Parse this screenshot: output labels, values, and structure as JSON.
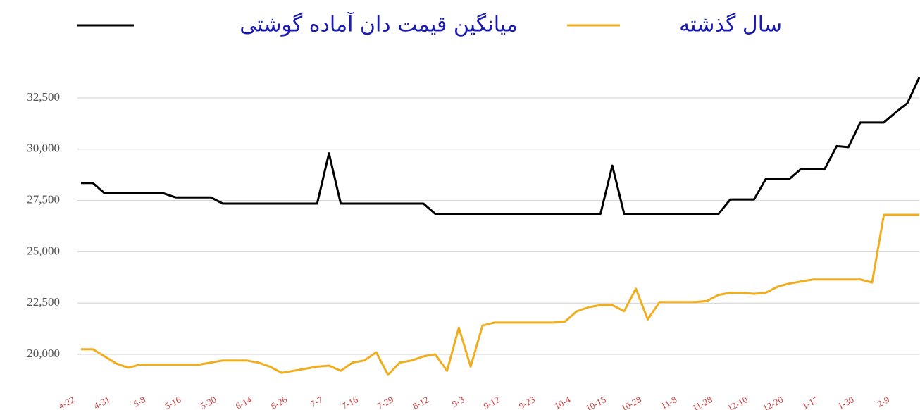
{
  "chart_data": {
    "type": "line",
    "categories": [
      "4-22",
      null,
      null,
      "4-31",
      null,
      null,
      "5-8",
      null,
      null,
      "5-16",
      null,
      null,
      "5-30",
      null,
      null,
      "6-14",
      null,
      null,
      "6-26",
      null,
      null,
      "7-7",
      null,
      null,
      "7-16",
      null,
      null,
      "7-29",
      null,
      null,
      "8-12",
      null,
      null,
      "9-3",
      null,
      null,
      "9-12",
      null,
      null,
      "9-23",
      null,
      null,
      "10-4",
      null,
      null,
      "10-15",
      null,
      null,
      "10-28",
      null,
      null,
      "11-8",
      null,
      null,
      "11-28",
      null,
      null,
      "12-10",
      null,
      null,
      "12-20",
      null,
      null,
      "1-17",
      null,
      null,
      "1-30",
      null,
      null,
      "2-9",
      null,
      null
    ],
    "series": [
      {
        "name": "میانگین قیمت دان آماده گوشتی",
        "color": "#000000",
        "values": [
          28350,
          28350,
          27850,
          27850,
          27850,
          27850,
          27850,
          27850,
          27650,
          27650,
          27650,
          27650,
          27350,
          27350,
          27350,
          27350,
          27350,
          27350,
          27350,
          27350,
          27350,
          29800,
          27350,
          27350,
          27350,
          27350,
          27350,
          27350,
          27350,
          27350,
          26850,
          26850,
          26850,
          26850,
          26850,
          26850,
          26850,
          26850,
          26850,
          26850,
          26850,
          26850,
          26850,
          26850,
          26850,
          29200,
          26850,
          26850,
          26850,
          26850,
          26850,
          26850,
          26850,
          26850,
          26850,
          27550,
          27550,
          27550,
          28550,
          28550,
          28550,
          29050,
          29050,
          29050,
          30150,
          30100,
          31300,
          31300,
          31300,
          31800,
          32250,
          33500
        ]
      },
      {
        "name": "سال گذشته",
        "color": "#f0ad1e",
        "values": [
          20250,
          20250,
          19900,
          19550,
          19350,
          19500,
          19500,
          19500,
          19500,
          19500,
          19500,
          19600,
          19700,
          19700,
          19700,
          19600,
          19400,
          19100,
          19200,
          19300,
          19400,
          19450,
          19200,
          19600,
          19700,
          20100,
          19000,
          19600,
          19700,
          19900,
          20000,
          19200,
          21300,
          19400,
          21400,
          21550,
          21550,
          21550,
          21550,
          21550,
          21550,
          21600,
          22100,
          22300,
          22400,
          22400,
          22100,
          23200,
          21700,
          22550,
          22550,
          22550,
          22550,
          22600,
          22900,
          23000,
          23000,
          22950,
          23000,
          23300,
          23450,
          23550,
          23650,
          23650,
          23650,
          23650,
          23650,
          23500,
          26800,
          26800,
          26800,
          26800
        ]
      }
    ],
    "ylim": [
      18500,
      34000
    ],
    "yticks": [
      {
        "value": 20000,
        "label": "20,000"
      },
      {
        "value": 22500,
        "label": "22,500"
      },
      {
        "value": 25000,
        "label": "25,000"
      },
      {
        "value": 27500,
        "label": "27,500"
      },
      {
        "value": 30000,
        "label": "30,000"
      },
      {
        "value": 32500,
        "label": "32,500"
      }
    ],
    "grid": true
  }
}
